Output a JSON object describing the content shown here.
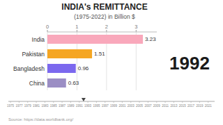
{
  "chart_data": [
    {
      "type": "bar",
      "orientation": "horizontal",
      "title": "INDIA's REMITTANCE",
      "subtitle": "(1975-2022) in Billion $",
      "categories": [
        "India",
        "Pakistan",
        "Bangladesh",
        "China"
      ],
      "values": [
        3.23,
        1.51,
        0.96,
        0.63
      ],
      "colors": [
        "#F9A8BB",
        "#F5A623",
        "#7B68EE",
        "#9B8EC4"
      ],
      "xlim": [
        0,
        3.7
      ],
      "xticks": [
        0,
        1,
        2,
        3
      ],
      "grid": true,
      "data_labels": true,
      "annotations": [
        "1992",
        "Source: https://data.worldbank.org/"
      ]
    },
    {
      "type": "timeline",
      "xlim": [
        1974.5,
        2022.5
      ],
      "xticks": [
        1975,
        1977,
        1979,
        1981,
        1983,
        1985,
        1987,
        1989,
        1991,
        1993,
        1995,
        1997,
        1999,
        2001,
        2003,
        2005,
        2007,
        2009,
        2011,
        2013,
        2015,
        2017,
        2019,
        2021
      ],
      "values": [
        1992
      ]
    }
  ]
}
